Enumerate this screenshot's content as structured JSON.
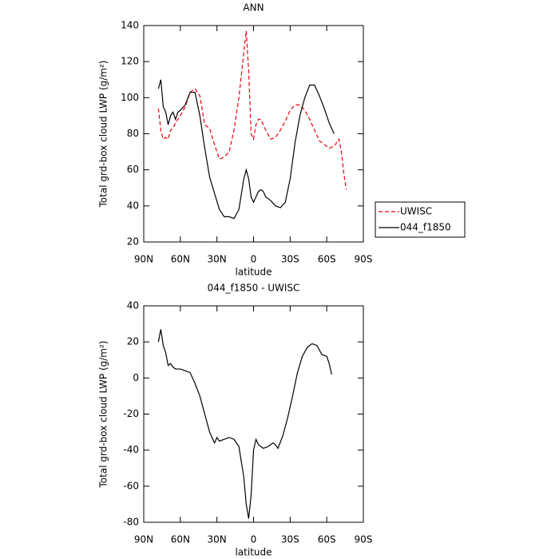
{
  "chart_data": [
    {
      "type": "line",
      "title": "ANN",
      "xlabel": "latitude",
      "ylabel": "Total grd-box cloud LWP (g/m²)",
      "x": [
        78,
        76,
        74,
        72,
        70,
        68,
        66,
        64,
        62,
        60,
        56,
        52,
        48,
        44,
        40,
        36,
        32,
        28,
        24,
        20,
        16,
        12,
        8,
        6,
        4,
        2,
        0,
        -2,
        -4,
        -6,
        -8,
        -10,
        -14,
        -18,
        -22,
        -26,
        -30,
        -34,
        -38,
        -42,
        -46,
        -50,
        -54,
        -58,
        -62,
        -66,
        -70,
        -72,
        -74,
        -76
      ],
      "series": [
        {
          "name": "UWISC",
          "color": "#e8000b",
          "dash": true,
          "values": [
            94,
            82,
            77,
            78,
            77,
            82,
            83,
            86,
            88,
            90,
            95,
            103,
            105,
            101,
            85,
            83,
            74,
            66,
            67,
            70,
            82,
            100,
            125,
            137,
            115,
            80,
            77,
            85,
            88,
            88,
            85,
            82,
            77,
            78,
            82,
            87,
            93,
            96,
            96,
            93,
            88,
            82,
            76,
            74,
            72,
            73,
            77,
            70,
            58,
            49
          ]
        },
        {
          "name": "044_f1850",
          "color": "#000000",
          "dash": false,
          "values": [
            105,
            110,
            95,
            92,
            85,
            90,
            92,
            88,
            92,
            93,
            96,
            103,
            103,
            90,
            72,
            56,
            47,
            38,
            34,
            34,
            33,
            38,
            55,
            60,
            55,
            45,
            42,
            45,
            48,
            49,
            48,
            45,
            43,
            40,
            39,
            42,
            55,
            75,
            90,
            100,
            107,
            107,
            101,
            94,
            86,
            80,
            null,
            null,
            null,
            null
          ]
        }
      ],
      "xlim": [
        90,
        -90
      ],
      "xticks": [
        {
          "value": 90,
          "label": "90N"
        },
        {
          "value": 60,
          "label": "60N"
        },
        {
          "value": 30,
          "label": "30N"
        },
        0,
        {
          "value": -30,
          "label": "30S"
        },
        {
          "value": -60,
          "label": "60S"
        },
        {
          "value": -90,
          "label": "90S"
        }
      ],
      "ylim": [
        20,
        140
      ],
      "yticks": [
        20,
        40,
        60,
        80,
        100,
        120,
        140
      ],
      "legend": "right"
    },
    {
      "type": "line",
      "title": "044_f1850 - UWISC",
      "xlabel": "latitude",
      "ylabel": "Total grd-box cloud LWP (g/m²)",
      "x": [
        78,
        76,
        74,
        72,
        70,
        68,
        66,
        64,
        62,
        60,
        56,
        52,
        48,
        44,
        40,
        36,
        32,
        30,
        28,
        24,
        20,
        16,
        12,
        8,
        6,
        4,
        2,
        0,
        -2,
        -4,
        -8,
        -12,
        -16,
        -18,
        -20,
        -24,
        -28,
        -32,
        -36,
        -40,
        -44,
        -48,
        -52,
        -56,
        -60,
        -62,
        -64
      ],
      "series": [
        {
          "color": "#000000",
          "dash": false,
          "values": [
            20,
            27,
            18,
            14,
            7,
            8,
            6,
            5,
            5,
            5,
            4,
            3,
            -3,
            -10,
            -20,
            -30,
            -36,
            -33,
            -35,
            -34,
            -33,
            -34,
            -38,
            -55,
            -70,
            -78,
            -65,
            -40,
            -34,
            -37,
            -39,
            -38,
            -36,
            -37,
            -39,
            -32,
            -22,
            -10,
            3,
            12,
            17,
            19,
            18,
            13,
            12,
            8,
            2
          ]
        }
      ],
      "xlim": [
        90,
        -90
      ],
      "xticks": [
        {
          "value": 90,
          "label": "90N"
        },
        {
          "value": 60,
          "label": "60N"
        },
        {
          "value": 30,
          "label": "30N"
        },
        0,
        {
          "value": -30,
          "label": "30S"
        },
        {
          "value": -60,
          "label": "60S"
        },
        {
          "value": -90,
          "label": "90S"
        }
      ],
      "ylim": [
        -80,
        40
      ],
      "yticks": [
        -80,
        -60,
        -40,
        -20,
        0,
        20,
        40
      ]
    }
  ]
}
